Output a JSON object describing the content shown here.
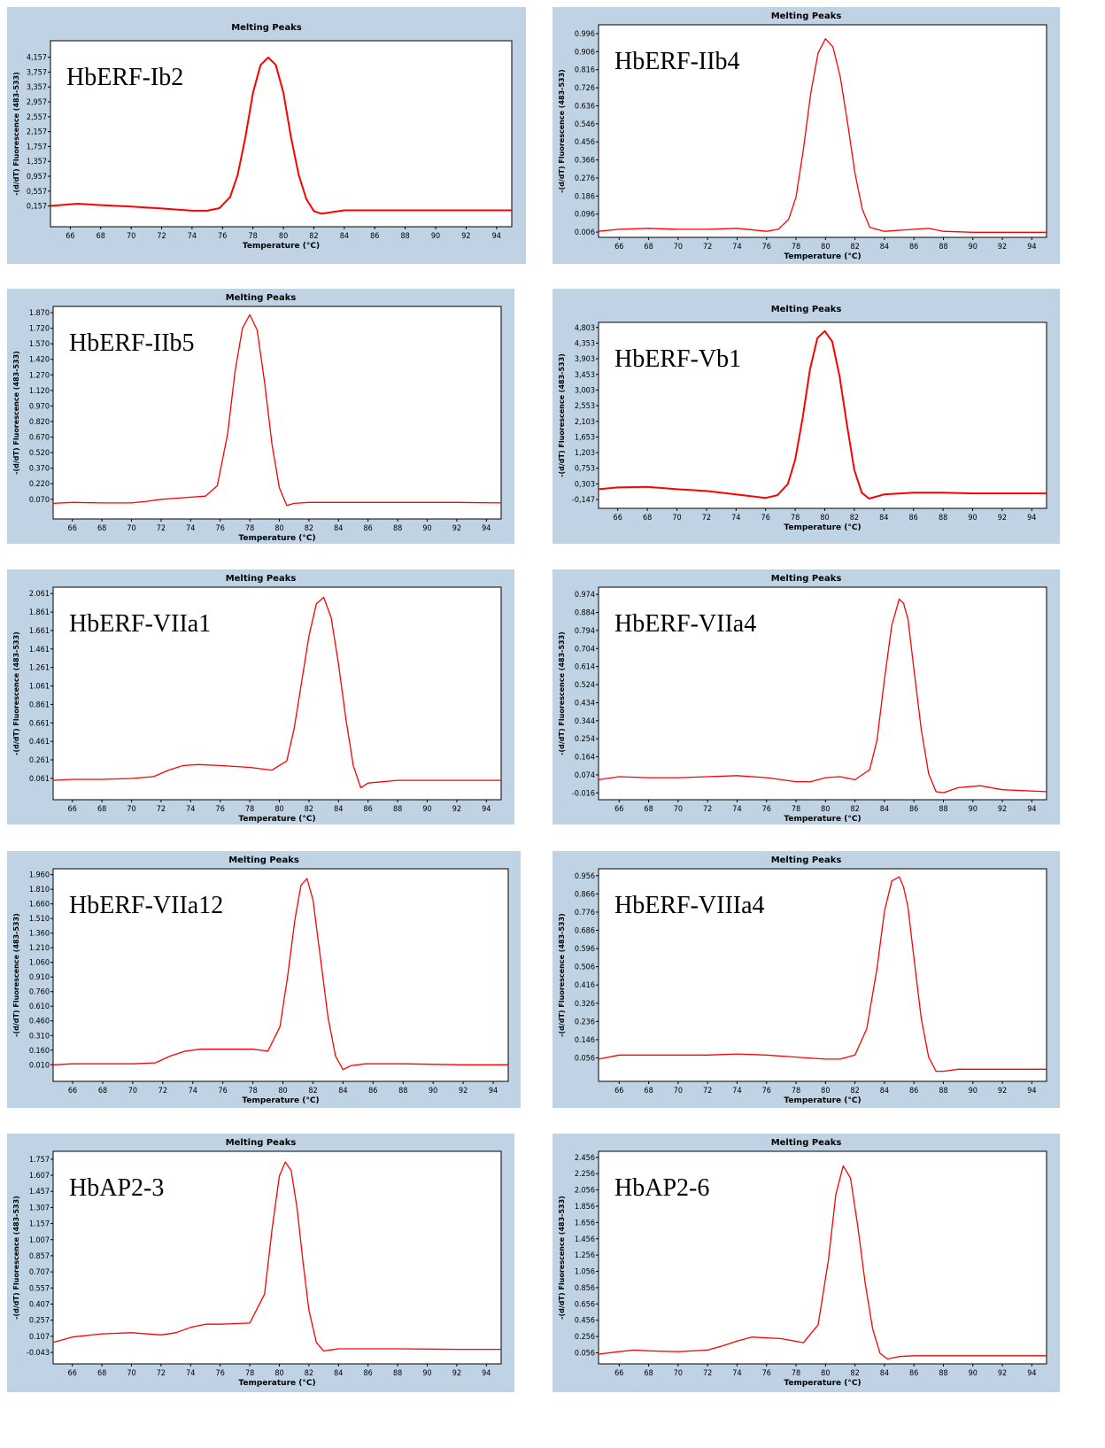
{
  "chart_data": [
    {
      "type": "line",
      "title": "Melting Peaks",
      "annotation": "HbERF-Ib2",
      "xlabel": "Temperature (°C)",
      "ylabel": "-(d/dT) Fluorescence (483-533)",
      "xlim": [
        64.7,
        95
      ],
      "ylim": [
        -0.4,
        4.6
      ],
      "xticks": [
        66,
        68,
        70,
        72,
        74,
        76,
        78,
        80,
        82,
        84,
        86,
        88,
        90,
        92,
        94
      ],
      "yticks": [
        "4,157",
        "3,757",
        "3,357",
        "2,957",
        "2,557",
        "2,157",
        "1,757",
        "1,357",
        "0,957",
        "0,557",
        "0,157"
      ],
      "ytick_values": [
        4.157,
        3.757,
        3.357,
        2.957,
        2.557,
        2.157,
        1.757,
        1.357,
        0.957,
        0.557,
        0.157
      ],
      "series": [
        {
          "color": "#ff0000",
          "x": [
            64.7,
            66.5,
            68,
            70,
            72,
            74,
            75,
            75.8,
            76.5,
            77,
            77.5,
            78,
            78.5,
            79,
            79.5,
            80,
            80.5,
            81,
            81.5,
            82,
            82.5,
            83,
            84,
            86,
            88,
            90,
            92,
            95
          ],
          "y": [
            0.16,
            0.22,
            0.18,
            0.14,
            0.09,
            0.03,
            0.03,
            0.1,
            0.4,
            1.0,
            2.0,
            3.2,
            3.95,
            4.15,
            3.95,
            3.2,
            2.0,
            1.0,
            0.35,
            0.02,
            -0.05,
            -0.02,
            0.04,
            0.04,
            0.04,
            0.04,
            0.04,
            0.04
          ]
        }
      ]
    },
    {
      "type": "line",
      "title": "Melting Peaks",
      "annotation": "HbERF-IIb4",
      "xlabel": "Temperature (°C)",
      "ylabel": "-(d/dT) Fluorescence (483-533)",
      "xlim": [
        64.6,
        95
      ],
      "ylim": [
        -0.02,
        1.04
      ],
      "xticks": [
        66,
        68,
        70,
        72,
        74,
        76,
        78,
        80,
        82,
        84,
        86,
        88,
        90,
        92,
        94
      ],
      "yticks": [
        "0.996",
        "0.906",
        "0.816",
        "0.726",
        "0.636",
        "0.546",
        "0.456",
        "0.366",
        "0.276",
        "0.186",
        "0.096",
        "0.006"
      ],
      "ytick_values": [
        0.996,
        0.906,
        0.816,
        0.726,
        0.636,
        0.546,
        0.456,
        0.366,
        0.276,
        0.186,
        0.096,
        0.006
      ],
      "series": [
        {
          "color": "#ff0000",
          "x": [
            64.6,
            66,
            68,
            70,
            72,
            74,
            76,
            76.8,
            77.5,
            78,
            78.5,
            79,
            79.5,
            80,
            80.5,
            81,
            81.5,
            82,
            82.5,
            83,
            84,
            86,
            87,
            88,
            90,
            92,
            95
          ],
          "y": [
            0.01,
            0.02,
            0.025,
            0.02,
            0.02,
            0.025,
            0.01,
            0.02,
            0.07,
            0.18,
            0.42,
            0.7,
            0.9,
            0.97,
            0.93,
            0.78,
            0.55,
            0.3,
            0.12,
            0.03,
            0.01,
            0.02,
            0.025,
            0.01,
            0.005,
            0.005,
            0.005
          ]
        }
      ]
    },
    {
      "type": "line",
      "title": "Melting Peaks",
      "annotation": "HbERF-IIb5",
      "xlabel": "Temperature (°C)",
      "ylabel": "-(d/dT) Fluorescence (483-533)",
      "xlim": [
        64.7,
        95
      ],
      "ylim": [
        -0.12,
        1.93
      ],
      "xticks": [
        66,
        68,
        70,
        72,
        74,
        76,
        78,
        80,
        82,
        84,
        86,
        88,
        90,
        92,
        94
      ],
      "yticks": [
        "1.870",
        "1.720",
        "1.570",
        "1.420",
        "1.270",
        "1.120",
        "0.970",
        "0.820",
        "0.670",
        "0.520",
        "0.370",
        "0.220",
        "0.070"
      ],
      "ytick_values": [
        1.87,
        1.72,
        1.57,
        1.42,
        1.27,
        1.12,
        0.97,
        0.82,
        0.67,
        0.52,
        0.37,
        0.22,
        0.07
      ],
      "series": [
        {
          "color": "#ff0000",
          "x": [
            64.7,
            66,
            68,
            70,
            71,
            72,
            73,
            74,
            75,
            75.8,
            76.5,
            77,
            77.5,
            78,
            78.5,
            79,
            79.5,
            80,
            80.5,
            81,
            82,
            84,
            88,
            92,
            95
          ],
          "y": [
            0.03,
            0.04,
            0.035,
            0.035,
            0.05,
            0.07,
            0.08,
            0.09,
            0.1,
            0.2,
            0.7,
            1.3,
            1.72,
            1.85,
            1.7,
            1.2,
            0.6,
            0.18,
            0.01,
            0.03,
            0.04,
            0.04,
            0.04,
            0.04,
            0.035
          ]
        }
      ]
    },
    {
      "type": "line",
      "title": "Melting Peaks",
      "annotation": "HbERF-Vb1",
      "xlabel": "Temperature (°C)",
      "ylabel": "-(d/dT) Fluorescence (483-533)",
      "xlim": [
        64.7,
        95
      ],
      "ylim": [
        -0.4,
        4.95
      ],
      "xticks": [
        66,
        68,
        70,
        72,
        74,
        76,
        78,
        80,
        82,
        84,
        86,
        88,
        90,
        92,
        94
      ],
      "yticks": [
        "4,803",
        "4,353",
        "3,903",
        "3,453",
        "3,003",
        "2,553",
        "2,103",
        "1,653",
        "1,203",
        "0,753",
        "0,303",
        "-0,147"
      ],
      "ytick_values": [
        4.803,
        4.353,
        3.903,
        3.453,
        3.003,
        2.553,
        2.103,
        1.653,
        1.203,
        0.753,
        0.303,
        -0.147
      ],
      "series": [
        {
          "color": "#ff0000",
          "x": [
            64.7,
            66,
            68,
            70,
            72,
            74,
            76,
            76.8,
            77.5,
            78,
            78.5,
            79,
            79.5,
            80,
            80.5,
            81,
            81.5,
            82,
            82.5,
            83,
            84,
            86,
            88,
            90,
            92,
            95
          ],
          "y": [
            0.15,
            0.2,
            0.22,
            0.15,
            0.1,
            0.0,
            -0.1,
            -0.02,
            0.3,
            1.0,
            2.2,
            3.6,
            4.5,
            4.7,
            4.4,
            3.4,
            2.0,
            0.7,
            0.05,
            -0.12,
            0.0,
            0.05,
            0.05,
            0.03,
            0.03,
            0.03
          ]
        }
      ]
    },
    {
      "type": "line",
      "title": "Melting Peaks",
      "annotation": "HbERF-VIIa1",
      "xlabel": "Temperature (°C)",
      "ylabel": "-(d/dT) Fluorescence (483-533)",
      "xlim": [
        64.7,
        95
      ],
      "ylim": [
        -0.17,
        2.13
      ],
      "xticks": [
        66,
        68,
        70,
        72,
        74,
        76,
        78,
        80,
        82,
        84,
        86,
        88,
        90,
        92,
        94
      ],
      "yticks": [
        "2.061",
        "1.861",
        "1.661",
        "1.461",
        "1.261",
        "1.061",
        "0.861",
        "0.661",
        "0.461",
        "0.261",
        "0.061"
      ],
      "ytick_values": [
        2.061,
        1.861,
        1.661,
        1.461,
        1.261,
        1.061,
        0.861,
        0.661,
        0.461,
        0.261,
        0.061
      ],
      "series": [
        {
          "color": "#ff0000",
          "x": [
            64.7,
            66,
            68,
            70,
            71.5,
            72.5,
            73.5,
            74.5,
            76,
            78,
            79.5,
            80.5,
            81,
            81.5,
            82,
            82.5,
            83,
            83.5,
            84,
            84.5,
            85,
            85.5,
            86,
            88,
            92,
            95
          ],
          "y": [
            0.04,
            0.05,
            0.05,
            0.06,
            0.08,
            0.15,
            0.2,
            0.21,
            0.2,
            0.18,
            0.15,
            0.25,
            0.6,
            1.1,
            1.6,
            1.95,
            2.02,
            1.8,
            1.3,
            0.7,
            0.2,
            -0.04,
            0.01,
            0.04,
            0.04,
            0.04
          ]
        }
      ]
    },
    {
      "type": "line",
      "title": "Melting Peaks",
      "annotation": "HbERF-VIIa4",
      "xlabel": "Temperature (°C)",
      "ylabel": "-(d/dT) Fluorescence (483-533)",
      "xlim": [
        64.6,
        95
      ],
      "ylim": [
        -0.05,
        1.01
      ],
      "xticks": [
        66,
        68,
        70,
        72,
        74,
        76,
        78,
        80,
        82,
        84,
        86,
        88,
        90,
        92,
        94
      ],
      "yticks": [
        "0.974",
        "0.884",
        "0.794",
        "0.704",
        "0.614",
        "0.524",
        "0.434",
        "0.344",
        "0.254",
        "0.164",
        "0.074",
        "-0.016"
      ],
      "ytick_values": [
        0.974,
        0.884,
        0.794,
        0.704,
        0.614,
        0.524,
        0.434,
        0.344,
        0.254,
        0.164,
        0.074,
        -0.016
      ],
      "series": [
        {
          "color": "#ff0000",
          "x": [
            64.6,
            66,
            68,
            70,
            72,
            74,
            76,
            78,
            79,
            80,
            81,
            82,
            83,
            83.5,
            84,
            84.5,
            85,
            85.3,
            85.6,
            86,
            86.5,
            87,
            87.5,
            88,
            89,
            90.5,
            92,
            95
          ],
          "y": [
            0.05,
            0.065,
            0.06,
            0.06,
            0.065,
            0.07,
            0.06,
            0.04,
            0.04,
            0.06,
            0.065,
            0.05,
            0.1,
            0.25,
            0.55,
            0.82,
            0.95,
            0.93,
            0.85,
            0.6,
            0.3,
            0.08,
            -0.01,
            -0.015,
            0.01,
            0.02,
            0.0,
            -0.01
          ]
        }
      ]
    },
    {
      "type": "line",
      "title": "Melting Peaks",
      "annotation": "HbERF-VIIa12",
      "xlabel": "Temperature (°C)",
      "ylabel": "-(d/dT) Fluorescence (483-533)",
      "xlim": [
        64.7,
        95
      ],
      "ylim": [
        -0.16,
        2.02
      ],
      "xticks": [
        66,
        68,
        70,
        72,
        74,
        76,
        78,
        80,
        82,
        84,
        86,
        88,
        90,
        92,
        94
      ],
      "yticks": [
        "1.960",
        "1.810",
        "1.660",
        "1.510",
        "1.360",
        "1.210",
        "1.060",
        "0.910",
        "0.760",
        "0.610",
        "0.460",
        "0.310",
        "0.160",
        "0.010"
      ],
      "ytick_values": [
        1.96,
        1.81,
        1.66,
        1.51,
        1.36,
        1.21,
        1.06,
        0.91,
        0.76,
        0.61,
        0.46,
        0.31,
        0.16,
        0.01
      ],
      "series": [
        {
          "color": "#ff0000",
          "x": [
            64.7,
            66,
            68,
            70,
            71.5,
            72.5,
            73.5,
            74.5,
            76,
            78,
            79,
            79.8,
            80.3,
            80.8,
            81.2,
            81.6,
            82,
            82.5,
            83,
            83.5,
            84,
            84.5,
            85.5,
            88,
            92,
            95
          ],
          "y": [
            0.01,
            0.02,
            0.02,
            0.02,
            0.03,
            0.1,
            0.15,
            0.17,
            0.17,
            0.17,
            0.15,
            0.4,
            0.9,
            1.5,
            1.85,
            1.92,
            1.7,
            1.1,
            0.5,
            0.1,
            -0.04,
            0.0,
            0.02,
            0.02,
            0.01,
            0.01
          ]
        }
      ]
    },
    {
      "type": "line",
      "title": "Melting Peaks",
      "annotation": "HbERF-VIIIa4",
      "xlabel": "Temperature (°C)",
      "ylabel": "-(d/dT) Fluorescence (483-533)",
      "xlim": [
        64.6,
        95
      ],
      "ylim": [
        -0.06,
        0.99
      ],
      "xticks": [
        66,
        68,
        70,
        72,
        74,
        76,
        78,
        80,
        82,
        84,
        86,
        88,
        90,
        92,
        94
      ],
      "yticks": [
        "0.956",
        "0.866",
        "0.776",
        "0.686",
        "0.596",
        "0.506",
        "0.416",
        "0.326",
        "0.236",
        "0.146",
        "0.056"
      ],
      "ytick_values": [
        0.956,
        0.866,
        0.776,
        0.686,
        0.596,
        0.506,
        0.416,
        0.326,
        0.236,
        0.146,
        0.056
      ],
      "series": [
        {
          "color": "#ff0000",
          "x": [
            64.6,
            66,
            68,
            70,
            72,
            74,
            76,
            78,
            80,
            81,
            82,
            82.8,
            83.5,
            84,
            84.5,
            85,
            85.3,
            85.6,
            86,
            86.5,
            87,
            87.5,
            88,
            89,
            92,
            95
          ],
          "y": [
            0.05,
            0.07,
            0.07,
            0.07,
            0.07,
            0.075,
            0.07,
            0.06,
            0.05,
            0.05,
            0.07,
            0.2,
            0.5,
            0.78,
            0.93,
            0.95,
            0.9,
            0.8,
            0.55,
            0.25,
            0.06,
            -0.01,
            -0.01,
            0.0,
            0.0,
            0.0
          ]
        }
      ]
    },
    {
      "type": "line",
      "title": "Melting Peaks",
      "annotation": "HbAP2-3",
      "xlabel": "Temperature (°C)",
      "ylabel": "-(d/dT) Fluorescence (483-533)",
      "xlim": [
        64.7,
        95
      ],
      "ylim": [
        -0.15,
        1.83
      ],
      "xticks": [
        66,
        68,
        70,
        72,
        74,
        76,
        78,
        80,
        82,
        84,
        86,
        88,
        90,
        92,
        94
      ],
      "yticks": [
        "1.757",
        "1.607",
        "1.457",
        "1.307",
        "1.157",
        "1.007",
        "0.857",
        "0.707",
        "0.557",
        "0.407",
        "0.257",
        "0.107",
        "-0.043"
      ],
      "ytick_values": [
        1.757,
        1.607,
        1.457,
        1.307,
        1.157,
        1.007,
        0.857,
        0.707,
        0.557,
        0.407,
        0.257,
        0.107,
        -0.043
      ],
      "series": [
        {
          "color": "#ff0000",
          "x": [
            64.7,
            66,
            68,
            70,
            72,
            73,
            74,
            75,
            76,
            78,
            79,
            79.5,
            80,
            80.4,
            80.8,
            81.2,
            81.6,
            82,
            82.5,
            83,
            83.5,
            84,
            86,
            88,
            92,
            95
          ],
          "y": [
            0.05,
            0.1,
            0.13,
            0.14,
            0.12,
            0.14,
            0.19,
            0.22,
            0.22,
            0.23,
            0.5,
            1.1,
            1.6,
            1.73,
            1.65,
            1.3,
            0.8,
            0.35,
            0.05,
            -0.03,
            -0.02,
            -0.01,
            -0.01,
            -0.01,
            -0.015,
            -0.015
          ]
        }
      ]
    },
    {
      "type": "line",
      "title": "Melting Peaks",
      "annotation": "HbAP2-6",
      "xlabel": "Temperature (°C)",
      "ylabel": "-(d/dT) Fluorescence (483-533)",
      "xlim": [
        64.6,
        95
      ],
      "ylim": [
        -0.08,
        2.53
      ],
      "xticks": [
        66,
        68,
        70,
        72,
        74,
        76,
        78,
        80,
        82,
        84,
        86,
        88,
        90,
        92,
        94
      ],
      "yticks": [
        "2.456",
        "2.256",
        "2.056",
        "1.856",
        "1.656",
        "1.456",
        "1.256",
        "1.056",
        "0.856",
        "0.656",
        "0.456",
        "0.256",
        "0.056"
      ],
      "ytick_values": [
        2.456,
        2.256,
        2.056,
        1.856,
        1.656,
        1.456,
        1.256,
        1.056,
        0.856,
        0.656,
        0.456,
        0.256,
        0.056
      ],
      "series": [
        {
          "color": "#ff0000",
          "x": [
            64.6,
            66,
            67,
            68,
            70,
            72,
            73,
            74,
            75,
            76,
            77,
            78.5,
            79.5,
            80.2,
            80.7,
            81.2,
            81.7,
            82.2,
            82.7,
            83.2,
            83.7,
            84.2,
            85,
            86,
            88,
            92,
            95
          ],
          "y": [
            0.04,
            0.07,
            0.09,
            0.08,
            0.07,
            0.09,
            0.14,
            0.2,
            0.25,
            0.24,
            0.23,
            0.18,
            0.4,
            1.2,
            2.0,
            2.35,
            2.2,
            1.6,
            0.9,
            0.35,
            0.05,
            -0.02,
            0.01,
            0.02,
            0.02,
            0.02,
            0.02
          ]
        }
      ]
    }
  ]
}
